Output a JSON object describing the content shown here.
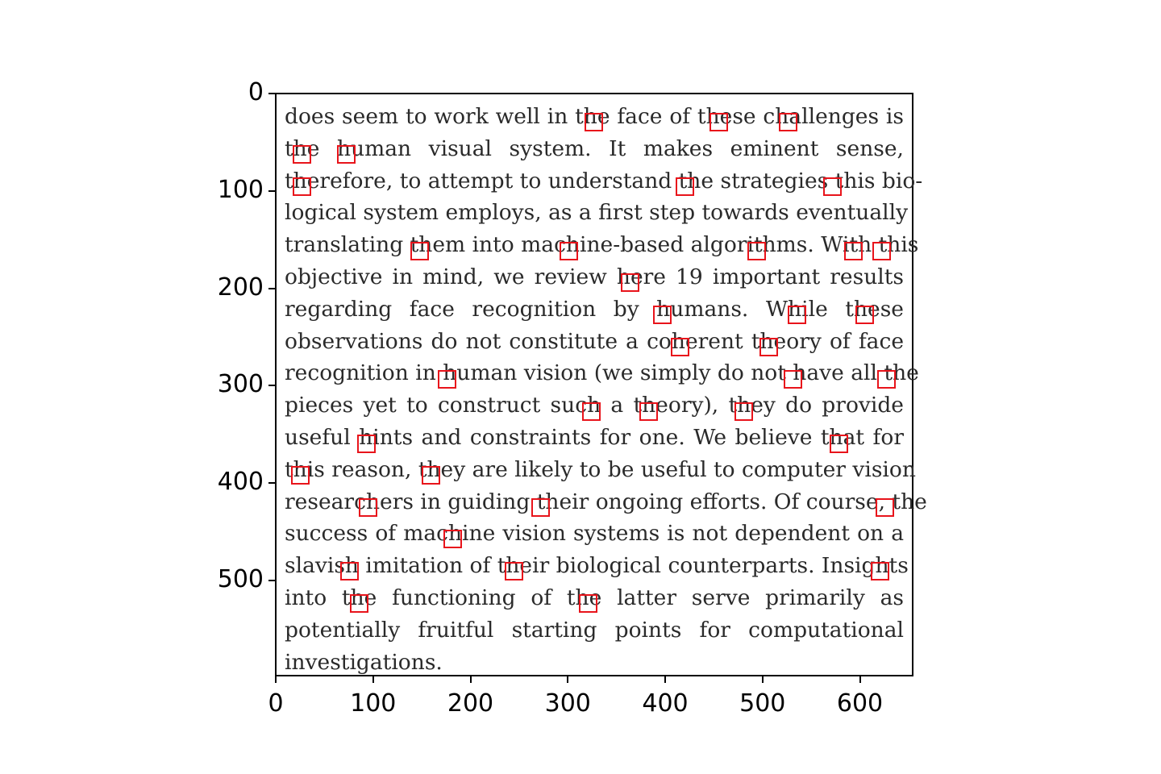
{
  "text_lines": [
    "does seem to work well in the face of these challenges is",
    "the human visual system. It makes eminent sense,",
    "therefore, to attempt to understand the strategies this bio-",
    "logical system employs, as a first step towards eventually",
    "translating them into machine-based algorithms. With this",
    "objective in mind, we review here 19 important results",
    "regarding face recognition by humans. While these",
    "observations do not constitute a coherent theory of face",
    "recognition in human vision (we simply do not have all the",
    "pieces yet to construct such a theory), they do provide",
    "useful hints and constraints for one. We believe that for",
    "this reason, they are likely to be useful to computer vision",
    "researchers in guiding their ongoing efforts. Of course, the",
    "success of machine vision systems is not dependent on a",
    "slavish imitation of their biological counterparts. Insights",
    "into the functioning of the latter serve primarily as",
    "potentially fruitful starting points for computational",
    "investigations."
  ],
  "axes": {
    "y_ticks": [
      "0",
      "100",
      "200",
      "300",
      "400",
      "500"
    ],
    "x_ticks": [
      "0",
      "100",
      "200",
      "300",
      "400",
      "500",
      "600"
    ]
  },
  "highlight_boxes": [
    {
      "x": 325,
      "y": 20
    },
    {
      "x": 453,
      "y": 20
    },
    {
      "x": 524,
      "y": 20
    },
    {
      "x": 25,
      "y": 53
    },
    {
      "x": 70,
      "y": 53
    },
    {
      "x": 25,
      "y": 86
    },
    {
      "x": 418,
      "y": 86
    },
    {
      "x": 570,
      "y": 86
    },
    {
      "x": 146,
      "y": 152
    },
    {
      "x": 299,
      "y": 152
    },
    {
      "x": 492,
      "y": 152
    },
    {
      "x": 591,
      "y": 152
    },
    {
      "x": 620,
      "y": 152
    },
    {
      "x": 362,
      "y": 185
    },
    {
      "x": 395,
      "y": 218
    },
    {
      "x": 533,
      "y": 218
    },
    {
      "x": 603,
      "y": 218
    },
    {
      "x": 413,
      "y": 251
    },
    {
      "x": 504,
      "y": 251
    },
    {
      "x": 174,
      "y": 284
    },
    {
      "x": 529,
      "y": 284
    },
    {
      "x": 625,
      "y": 284
    },
    {
      "x": 322,
      "y": 317
    },
    {
      "x": 381,
      "y": 317
    },
    {
      "x": 479,
      "y": 317
    },
    {
      "x": 91,
      "y": 350
    },
    {
      "x": 576,
      "y": 350
    },
    {
      "x": 23,
      "y": 383
    },
    {
      "x": 157,
      "y": 383
    },
    {
      "x": 93,
      "y": 416
    },
    {
      "x": 270,
      "y": 416
    },
    {
      "x": 624,
      "y": 416
    },
    {
      "x": 180,
      "y": 448
    },
    {
      "x": 74,
      "y": 481
    },
    {
      "x": 243,
      "y": 481
    },
    {
      "x": 619,
      "y": 481
    },
    {
      "x": 84,
      "y": 514
    },
    {
      "x": 319,
      "y": 514
    }
  ]
}
